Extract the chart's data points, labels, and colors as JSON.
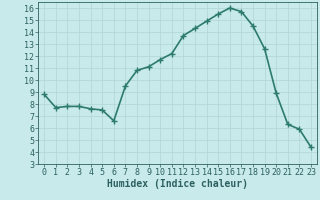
{
  "x": [
    0,
    1,
    2,
    3,
    4,
    5,
    6,
    7,
    8,
    9,
    10,
    11,
    12,
    13,
    14,
    15,
    16,
    17,
    18,
    19,
    20,
    21,
    22,
    23
  ],
  "y": [
    8.8,
    7.7,
    7.8,
    7.8,
    7.6,
    7.5,
    6.6,
    9.5,
    10.8,
    11.1,
    11.7,
    12.2,
    13.7,
    14.3,
    14.9,
    15.5,
    16.0,
    15.7,
    14.5,
    12.6,
    8.9,
    6.3,
    5.9,
    4.4
  ],
  "line_color": "#2d7a6e",
  "bg_color": "#c8eaea",
  "grid_color": "#b0d4d4",
  "text_color": "#2d6060",
  "xlabel": "Humidex (Indice chaleur)",
  "ylim": [
    3,
    16.5
  ],
  "xlim": [
    -0.5,
    23.5
  ],
  "yticks": [
    3,
    4,
    5,
    6,
    7,
    8,
    9,
    10,
    11,
    12,
    13,
    14,
    15,
    16
  ],
  "xticks": [
    0,
    1,
    2,
    3,
    4,
    5,
    6,
    7,
    8,
    9,
    10,
    11,
    12,
    13,
    14,
    15,
    16,
    17,
    18,
    19,
    20,
    21,
    22,
    23
  ],
  "marker": "+",
  "linewidth": 1.2,
  "markersize": 4,
  "fontsize_label": 7,
  "fontsize_tick": 6
}
